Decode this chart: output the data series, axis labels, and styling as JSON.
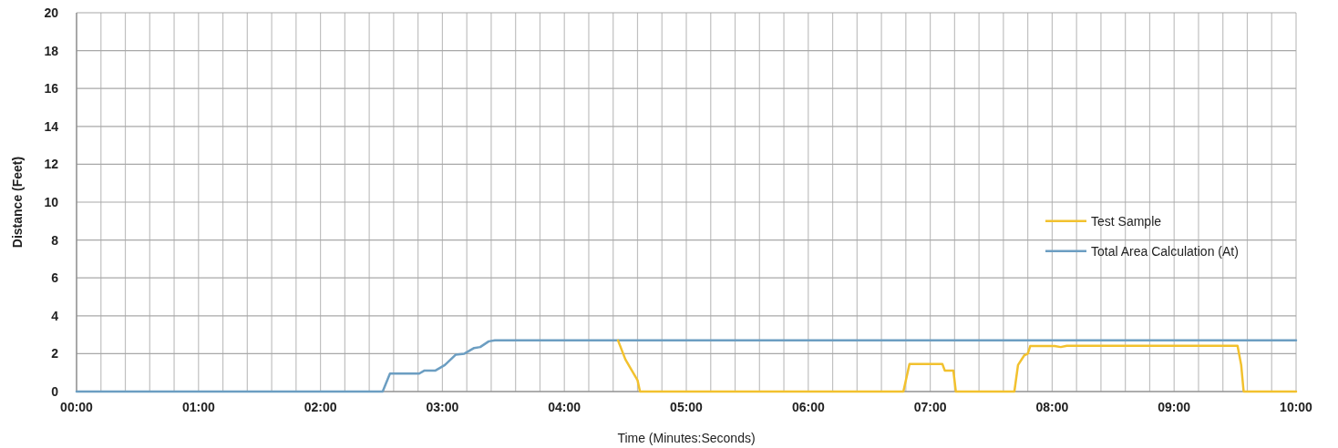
{
  "chart_data": {
    "type": "line",
    "xlabel": "Time (Minutes:Seconds)",
    "ylabel": "Distance (Feet)",
    "xlim": [
      0,
      10
    ],
    "ylim": [
      0,
      20
    ],
    "xticks": [
      {
        "value": 0,
        "label": "00:00"
      },
      {
        "value": 0.2,
        "label": null
      },
      {
        "value": 0.4,
        "label": null
      },
      {
        "value": 0.6,
        "label": null
      },
      {
        "value": 0.8,
        "label": null
      },
      {
        "value": 1,
        "label": "01:00"
      },
      {
        "value": 1.2,
        "label": null
      },
      {
        "value": 1.4,
        "label": null
      },
      {
        "value": 1.6,
        "label": null
      },
      {
        "value": 1.8,
        "label": null
      },
      {
        "value": 2,
        "label": "02:00"
      },
      {
        "value": 2.2,
        "label": null
      },
      {
        "value": 2.4,
        "label": null
      },
      {
        "value": 2.6,
        "label": null
      },
      {
        "value": 2.8,
        "label": null
      },
      {
        "value": 3,
        "label": "03:00"
      },
      {
        "value": 3.2,
        "label": null
      },
      {
        "value": 3.4,
        "label": null
      },
      {
        "value": 3.6,
        "label": null
      },
      {
        "value": 3.8,
        "label": null
      },
      {
        "value": 4,
        "label": "04:00"
      },
      {
        "value": 4.2,
        "label": null
      },
      {
        "value": 4.4,
        "label": null
      },
      {
        "value": 4.6,
        "label": null
      },
      {
        "value": 4.8,
        "label": null
      },
      {
        "value": 5,
        "label": "05:00"
      },
      {
        "value": 5.2,
        "label": null
      },
      {
        "value": 5.4,
        "label": null
      },
      {
        "value": 5.6,
        "label": null
      },
      {
        "value": 5.8,
        "label": null
      },
      {
        "value": 6,
        "label": "06:00"
      },
      {
        "value": 6.2,
        "label": null
      },
      {
        "value": 6.4,
        "label": null
      },
      {
        "value": 6.6,
        "label": null
      },
      {
        "value": 6.8,
        "label": null
      },
      {
        "value": 7,
        "label": "07:00"
      },
      {
        "value": 7.2,
        "label": null
      },
      {
        "value": 7.4,
        "label": null
      },
      {
        "value": 7.6,
        "label": null
      },
      {
        "value": 7.8,
        "label": null
      },
      {
        "value": 8,
        "label": "08:00"
      },
      {
        "value": 8.2,
        "label": null
      },
      {
        "value": 8.4,
        "label": null
      },
      {
        "value": 8.6,
        "label": null
      },
      {
        "value": 8.8,
        "label": null
      },
      {
        "value": 9,
        "label": "09:00"
      },
      {
        "value": 9.2,
        "label": null
      },
      {
        "value": 9.4,
        "label": null
      },
      {
        "value": 9.6,
        "label": null
      },
      {
        "value": 9.8,
        "label": null
      },
      {
        "value": 10,
        "label": "10:00"
      }
    ],
    "yticks": [
      0,
      2,
      4,
      6,
      8,
      10,
      12,
      14,
      16,
      18,
      20
    ],
    "grid": true,
    "legend": "right",
    "marker": "none",
    "line_style": "solid",
    "series": [
      {
        "name": "Test Sample",
        "color": "#f2c12e",
        "x": [
          4.44,
          4.5,
          4.55,
          4.6,
          4.62,
          6.78,
          6.83,
          7.1,
          7.12,
          7.19,
          7.21,
          7.69,
          7.72,
          7.77,
          7.8,
          7.82,
          8.02,
          8.07,
          8.12,
          9.52,
          9.55,
          9.57,
          10
        ],
        "values": [
          2.7,
          1.7,
          1.15,
          0.6,
          0,
          0,
          1.45,
          1.45,
          1.1,
          1.1,
          0,
          0,
          1.4,
          1.9,
          2,
          2.4,
          2.4,
          2.35,
          2.42,
          2.42,
          1.4,
          0,
          0
        ]
      },
      {
        "name": "Total Area Calculation (At)",
        "color": "#6c9ec2",
        "x": [
          0,
          2.51,
          2.57,
          2.81,
          2.85,
          2.94,
          3.02,
          3.11,
          3.18,
          3.26,
          3.31,
          3.38,
          3.43,
          3.6,
          10
        ],
        "values": [
          0,
          0,
          0.95,
          0.95,
          1.1,
          1.1,
          1.4,
          1.95,
          2,
          2.3,
          2.35,
          2.65,
          2.7,
          2.7,
          2.7
        ]
      }
    ]
  }
}
